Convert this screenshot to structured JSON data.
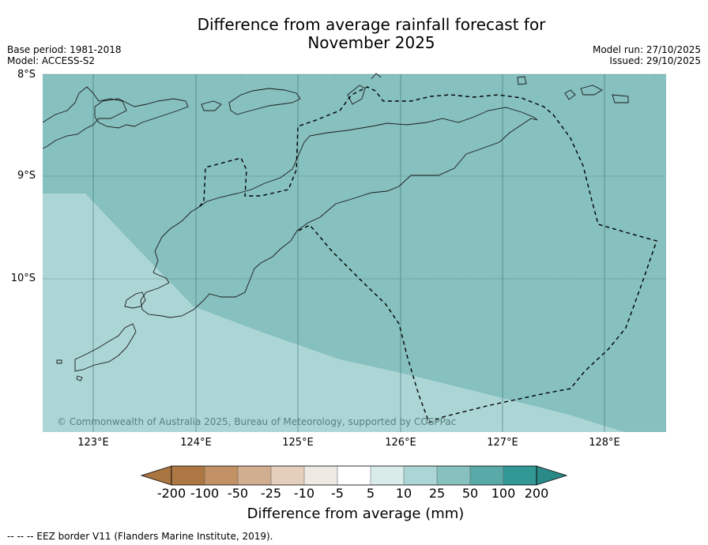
{
  "title": {
    "line1": "Difference from average rainfall forecast for",
    "line2": "November 2025"
  },
  "meta_left": {
    "base_period": "Base period: 1981-2018",
    "model": "Model: ACCESS-S2"
  },
  "meta_right": {
    "model_run": "Model run: 27/10/2025",
    "issued": "Issued: 29/10/2025"
  },
  "axes": {
    "lat_labels": [
      "8°S",
      "9°S",
      "10°S"
    ],
    "lon_labels": [
      "123°E",
      "124°E",
      "125°E",
      "126°E",
      "127°E",
      "128°E"
    ]
  },
  "map_data": {
    "extent": {
      "lon_min": 122.5,
      "lon_max": 128.6,
      "lat_min": -11.5,
      "lat_max": -8.0
    },
    "regions": [
      {
        "category": "50 to 100 mm",
        "color": "#86c0bf"
      },
      {
        "category": "25 to 50 mm",
        "color": "#acd6d5"
      }
    ]
  },
  "copyright": "© Commonwealth of Australia 2025, Bureau of Meteorology, supported by COSPPac",
  "colorbar": {
    "labels": [
      "-200",
      "-100",
      "-50",
      "-25",
      "-10",
      "-5",
      "5",
      "10",
      "25",
      "50",
      "100",
      "200"
    ],
    "colors": [
      "#a87440",
      "#ad7844",
      "#c29266",
      "#d1ae8f",
      "#e3cfbc",
      "#efe9e4",
      "#ffffff",
      "#d9ecea",
      "#acd6d5",
      "#86c0bf",
      "#58a9a7",
      "#319896",
      "#2a8a88"
    ],
    "title": "Difference from average (mm)"
  },
  "footnote": "--  --  -- EEZ border V11 (Flanders Marine Institute, 2019)."
}
